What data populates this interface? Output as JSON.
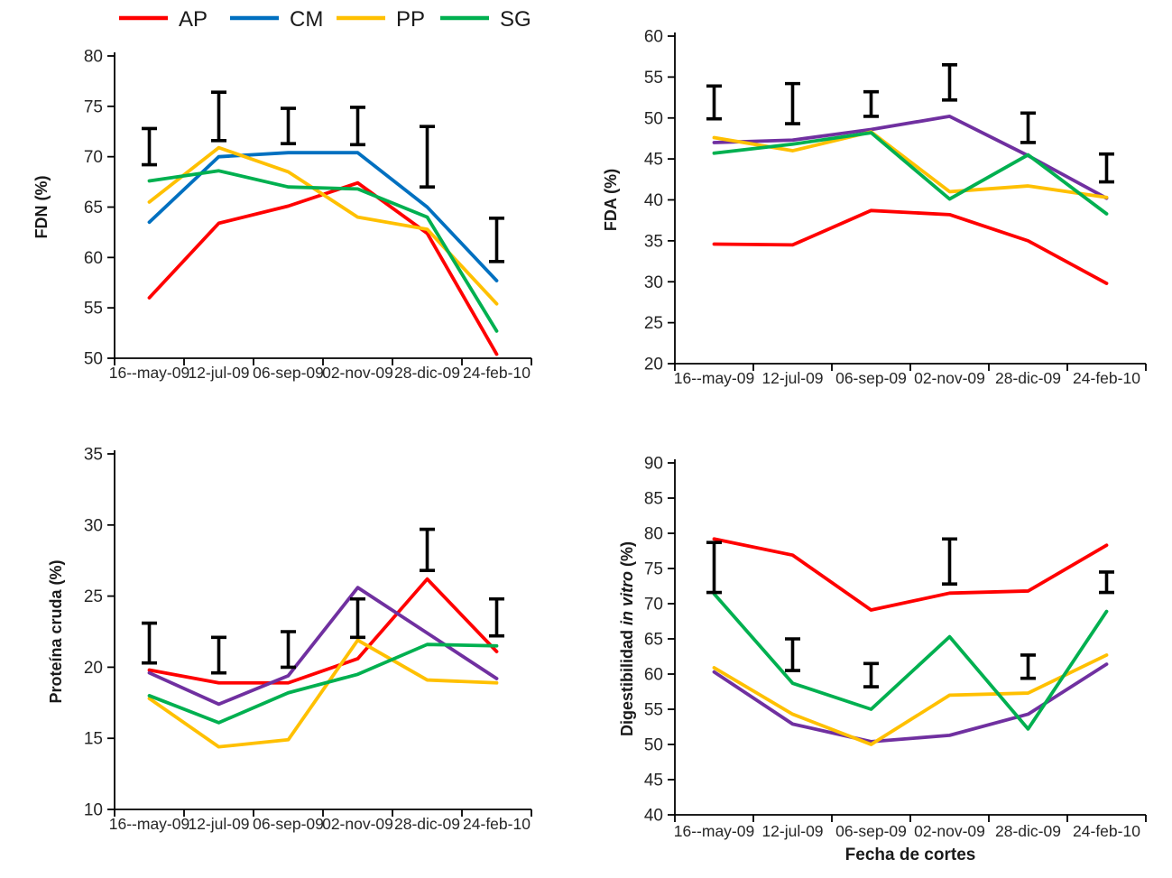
{
  "figure": {
    "background": "#ffffff",
    "description_categories_note": "same six cutting dates shared by all four panels"
  },
  "legend": {
    "items": [
      {
        "label": "AP",
        "color": "#FF0000"
      },
      {
        "label": "CM",
        "color": "#0070C0"
      },
      {
        "label": "PP",
        "color": "#FFC000"
      },
      {
        "label": "SG",
        "color": "#00B050"
      }
    ]
  },
  "colors": {
    "ap_red": "#FF0000",
    "cm_blue": "#0070C0",
    "cm_purple": "#7030A0",
    "pp_yellow": "#FFC000",
    "sg_green": "#00B050",
    "error_bar": "#000000"
  },
  "chart_data": [
    {
      "id": "fdn",
      "type": "line",
      "title": "",
      "ylabel": "FDN (%)",
      "ylabel_parts": [
        {
          "text": "FDN (%)",
          "italic": false
        }
      ],
      "xlabel": "",
      "ylim": [
        50,
        80
      ],
      "yticks": [
        50,
        55,
        60,
        65,
        70,
        75,
        80
      ],
      "grid": false,
      "categories": [
        "16--may-09",
        "12-jul-09",
        "06-sep-09",
        "02-nov-09",
        "28-dic-09",
        "24-feb-10"
      ],
      "series": [
        {
          "name": "AP",
          "color": "#FF0000",
          "values": [
            56.0,
            63.4,
            65.1,
            67.4,
            62.4,
            50.4
          ]
        },
        {
          "name": "CM",
          "color": "#0070C0",
          "values": [
            63.5,
            70.0,
            70.4,
            70.4,
            65.0,
            57.7
          ]
        },
        {
          "name": "PP",
          "color": "#FFC000",
          "values": [
            65.5,
            70.9,
            68.5,
            64.0,
            62.8,
            55.4
          ]
        },
        {
          "name": "SG",
          "color": "#00B050",
          "values": [
            67.6,
            68.6,
            67.0,
            66.8,
            64.0,
            52.7
          ]
        }
      ],
      "error_bars": [
        [
          69.2,
          72.8
        ],
        [
          71.6,
          76.4
        ],
        [
          71.3,
          74.8
        ],
        [
          71.2,
          74.9
        ],
        [
          67.0,
          73.0
        ],
        [
          59.6,
          63.9
        ]
      ]
    },
    {
      "id": "fda",
      "type": "line",
      "title": "",
      "ylabel": "FDA (%)",
      "ylabel_parts": [
        {
          "text": "FDA (%)",
          "italic": false
        }
      ],
      "xlabel": "",
      "ylim": [
        20,
        60
      ],
      "yticks": [
        20,
        25,
        30,
        35,
        40,
        45,
        50,
        55,
        60
      ],
      "grid": false,
      "categories": [
        "16--may-09",
        "12-jul-09",
        "06-sep-09",
        "02-nov-09",
        "28-dic-09",
        "24-feb-10"
      ],
      "series": [
        {
          "name": "AP",
          "color": "#FF0000",
          "values": [
            34.6,
            34.5,
            38.7,
            38.2,
            35.0,
            29.8
          ]
        },
        {
          "name": "CM",
          "color": "#7030A0",
          "values": [
            47.0,
            47.3,
            48.6,
            50.2,
            45.4,
            40.2
          ]
        },
        {
          "name": "PP",
          "color": "#FFC000",
          "values": [
            47.6,
            46.0,
            48.3,
            41.0,
            41.7,
            40.3
          ]
        },
        {
          "name": "SG",
          "color": "#00B050",
          "values": [
            45.7,
            46.8,
            48.2,
            40.1,
            45.5,
            38.3
          ]
        }
      ],
      "error_bars": [
        [
          49.9,
          53.9
        ],
        [
          49.3,
          54.2
        ],
        [
          50.2,
          53.2
        ],
        [
          52.2,
          56.5
        ],
        [
          47.0,
          50.6
        ],
        [
          42.2,
          45.6
        ]
      ]
    },
    {
      "id": "proteina",
      "type": "line",
      "title": "",
      "ylabel": "Proteína cruda (%)",
      "ylabel_parts": [
        {
          "text": "Proteína cruda (%)",
          "italic": false
        }
      ],
      "xlabel": "",
      "ylim": [
        10,
        35
      ],
      "yticks": [
        10,
        15,
        20,
        25,
        30,
        35
      ],
      "grid": false,
      "categories": [
        "16--may-09",
        "12-jul-09",
        "06-sep-09",
        "02-nov-09",
        "28-dic-09",
        "24-feb-10"
      ],
      "series": [
        {
          "name": "AP",
          "color": "#FF0000",
          "values": [
            19.8,
            18.9,
            18.9,
            20.6,
            26.2,
            21.1
          ]
        },
        {
          "name": "CM",
          "color": "#7030A0",
          "values": [
            19.6,
            17.4,
            19.4,
            25.6,
            22.4,
            19.2
          ]
        },
        {
          "name": "PP",
          "color": "#FFC000",
          "values": [
            17.8,
            14.4,
            14.9,
            21.9,
            19.1,
            18.9
          ]
        },
        {
          "name": "SG",
          "color": "#00B050",
          "values": [
            18.0,
            16.1,
            18.2,
            19.5,
            21.6,
            21.5
          ]
        }
      ],
      "error_bars": [
        [
          20.3,
          23.1
        ],
        [
          19.6,
          22.1
        ],
        [
          20.0,
          22.5
        ],
        [
          22.1,
          24.8
        ],
        [
          26.8,
          29.7
        ],
        [
          22.2,
          24.8
        ]
      ]
    },
    {
      "id": "digestibilidad",
      "type": "line",
      "title": "",
      "ylabel": "Digestibilidad in vitro (%)",
      "ylabel_parts": [
        {
          "text": "Digestibilidad ",
          "italic": false
        },
        {
          "text": "in vitro",
          "italic": true
        },
        {
          "text": " (%)",
          "italic": false
        }
      ],
      "xlabel": "Fecha de cortes",
      "ylim": [
        40,
        90
      ],
      "yticks": [
        40,
        45,
        50,
        55,
        60,
        65,
        70,
        75,
        80,
        85,
        90
      ],
      "grid": false,
      "categories": [
        "16--may-09",
        "12-jul-09",
        "06-sep-09",
        "02-nov-09",
        "28-dic-09",
        "24-feb-10"
      ],
      "series": [
        {
          "name": "AP",
          "color": "#FF0000",
          "values": [
            79.2,
            76.9,
            69.1,
            71.5,
            71.8,
            78.3
          ]
        },
        {
          "name": "CM",
          "color": "#7030A0",
          "values": [
            60.3,
            52.9,
            50.4,
            51.3,
            54.3,
            61.4
          ]
        },
        {
          "name": "PP",
          "color": "#FFC000",
          "values": [
            60.9,
            54.3,
            50.0,
            57.0,
            57.3,
            62.7
          ]
        },
        {
          "name": "SG",
          "color": "#00B050",
          "values": [
            71.4,
            58.7,
            55.0,
            65.3,
            52.2,
            68.9
          ]
        }
      ],
      "error_bars": [
        [
          71.6,
          78.7
        ],
        [
          60.5,
          65.0
        ],
        [
          58.2,
          61.5
        ],
        [
          72.8,
          79.2
        ],
        [
          59.4,
          62.7
        ],
        [
          71.6,
          74.5
        ]
      ]
    }
  ]
}
